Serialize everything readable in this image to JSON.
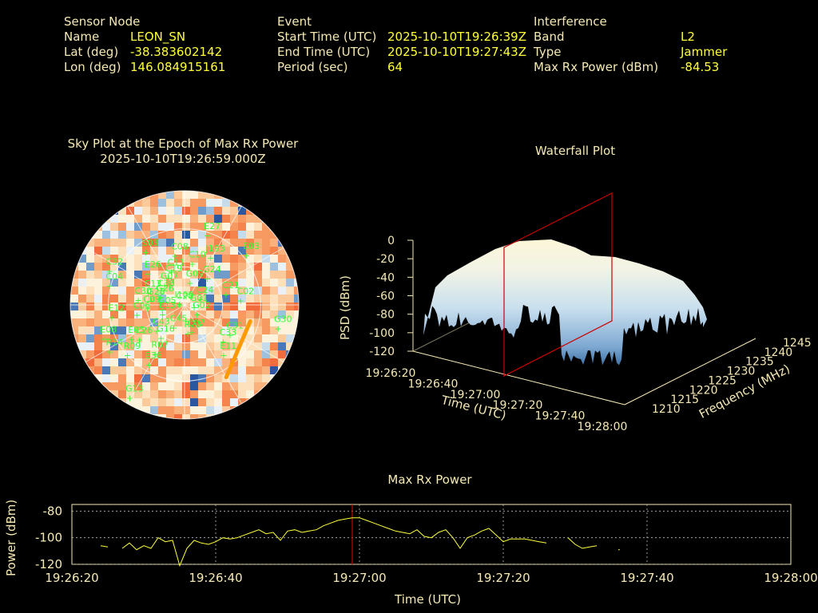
{
  "header": {
    "sensor": {
      "heading": "Sensor Node",
      "rows": [
        {
          "label": "Name",
          "value": "LEON_SN"
        },
        {
          "label": "Lat (deg)",
          "value": "-38.383602142"
        },
        {
          "label": "Lon (deg)",
          "value": "146.084915161"
        }
      ]
    },
    "event": {
      "heading": "Event",
      "rows": [
        {
          "label": "Start Time (UTC)",
          "value": "2025-10-10T19:26:39Z"
        },
        {
          "label": "End Time (UTC)",
          "value": "2025-10-10T19:27:43Z"
        },
        {
          "label": "Period (sec)",
          "value": "64"
        }
      ]
    },
    "interference": {
      "heading": "Interference",
      "rows": [
        {
          "label": "Band",
          "value": "L2"
        },
        {
          "label": "Type",
          "value": "Jammer"
        },
        {
          "label": "Max Rx Power (dBm)",
          "value": "-84.53"
        }
      ]
    }
  },
  "colors": {
    "label": "#f5e9b3",
    "value": "#ffff3a",
    "satellite_label": "#33ff33",
    "epoch_marker": "#cc0000",
    "jammer_arrow": "#ff9900"
  },
  "chart_data": [
    {
      "type": "heatmap",
      "subtype": "sky-plot",
      "title": "Sky Plot at the Epoch of Max Rx Power",
      "subtitle": "2025-10-10T19:26:59.000Z",
      "satellites": [
        {
          "id": "I105",
          "az": -3,
          "el": 88
        },
        {
          "id": "C28",
          "az": 2,
          "el": 89
        },
        {
          "id": "G09",
          "az": 20,
          "el": 70
        },
        {
          "id": "C19",
          "az": -18,
          "el": 66
        },
        {
          "id": "C11",
          "az": -12,
          "el": 62
        },
        {
          "id": "G07",
          "az": -30,
          "el": 70
        },
        {
          "id": "C38",
          "az": -45,
          "el": 73
        },
        {
          "id": "C10",
          "az": 15,
          "el": 55
        },
        {
          "id": "C08",
          "az": -5,
          "el": 50
        },
        {
          "id": "J193",
          "az": 30,
          "el": 45
        },
        {
          "id": "E26",
          "az": -40,
          "el": 55
        },
        {
          "id": "G26",
          "az": -55,
          "el": 75
        },
        {
          "id": "C13",
          "az": -60,
          "el": 65
        },
        {
          "id": "G28",
          "az": -70,
          "el": 70
        },
        {
          "id": "C30",
          "az": -75,
          "el": 60
        },
        {
          "id": "C09",
          "az": -85,
          "el": 68
        },
        {
          "id": "C06",
          "az": -95,
          "el": 60
        },
        {
          "id": "G05",
          "az": -85,
          "el": 80
        },
        {
          "id": "S03",
          "az": -30,
          "el": 40
        },
        {
          "id": "E27",
          "az": 20,
          "el": 30
        },
        {
          "id": "G24",
          "az": 40,
          "el": 60
        },
        {
          "id": "E03",
          "az": 50,
          "el": 25
        },
        {
          "id": "C04",
          "az": -70,
          "el": 35
        },
        {
          "id": "C32",
          "az": -60,
          "el": 30
        },
        {
          "id": "C21",
          "az": 70,
          "el": 55
        },
        {
          "id": "G01",
          "az": 75,
          "el": 82
        },
        {
          "id": "E13",
          "az": -100,
          "el": 80
        },
        {
          "id": "E08",
          "az": -110,
          "el": 30
        },
        {
          "id": "G13",
          "az": -150,
          "el": 15
        },
        {
          "id": "G30",
          "az": 100,
          "el": 15
        },
        {
          "id": "C02",
          "az": 80,
          "el": 45
        },
        {
          "id": "G02",
          "az": 100,
          "el": 80
        },
        {
          "id": "C31",
          "az": 115,
          "el": 50
        },
        {
          "id": "C33",
          "az": 125,
          "el": 52
        },
        {
          "id": "E11",
          "az": 135,
          "el": 45
        },
        {
          "id": "E36",
          "az": -150,
          "el": 45
        },
        {
          "id": "E05",
          "az": -120,
          "el": 50
        },
        {
          "id": "C43",
          "az": -130,
          "el": 70
        },
        {
          "id": "R07",
          "az": -150,
          "el": 55
        },
        {
          "id": "G16",
          "az": -145,
          "el": 68
        },
        {
          "id": "C45",
          "az": -160,
          "el": 80
        },
        {
          "id": "R23",
          "az": 160,
          "el": 75
        },
        {
          "id": "C07",
          "az": 150,
          "el": 75
        },
        {
          "id": "R09",
          "az": -130,
          "el": 40
        },
        {
          "id": "R14",
          "az": -120,
          "el": 30
        },
        {
          "id": "E12",
          "az": -95,
          "el": 40
        },
        {
          "id": "C26",
          "az": -125,
          "el": 55
        },
        {
          "id": "C24",
          "az": 60,
          "el": 75
        }
      ],
      "jammer_direction_az": 130
    },
    {
      "type": "area",
      "subtype": "3d-waterfall",
      "title": "Waterfall Plot",
      "xlabel": "Time (UTC)",
      "ylabel": "Frequency (MHz)",
      "zlabel": "PSD (dBm)",
      "x_ticks": [
        "19:26:20",
        "19:26:40",
        "19:27:00",
        "19:27:20",
        "19:27:40",
        "19:28:00"
      ],
      "y_ticks": [
        "1210",
        "1215",
        "1220",
        "1225",
        "1230",
        "1235",
        "1240",
        "1245"
      ],
      "z_ticks": [
        "0",
        "-20",
        "-40",
        "-60",
        "-80",
        "-100",
        "-120"
      ],
      "zlim": [
        -120,
        0
      ]
    },
    {
      "type": "line",
      "title": "Max Rx Power",
      "xlabel": "Time (UTC)",
      "ylabel": "Power (dBm)",
      "x_ticks": [
        "19:26:20",
        "19:26:40",
        "19:27:00",
        "19:27:20",
        "19:27:40",
        "19:28:00"
      ],
      "y_ticks": [
        "-80",
        "-100",
        "-120"
      ],
      "ylim": [
        -120,
        -75
      ],
      "xlim_sec": [
        0,
        100
      ],
      "epoch_marker_sec": 39,
      "series": [
        {
          "segments": [
            [
              [
                4,
                -106
              ],
              [
                5,
                -107
              ]
            ],
            [
              [
                7,
                -108
              ],
              [
                8,
                -104
              ],
              [
                9,
                -109
              ],
              [
                10,
                -106
              ],
              [
                11,
                -108
              ],
              [
                12,
                -100
              ],
              [
                13,
                -103
              ],
              [
                14,
                -102
              ],
              [
                15,
                -121
              ],
              [
                16,
                -108
              ],
              [
                17,
                -102
              ],
              [
                18,
                -104
              ],
              [
                19,
                -105
              ],
              [
                20,
                -103
              ],
              [
                21,
                -100
              ],
              [
                22,
                -101
              ],
              [
                23,
                -100
              ],
              [
                24,
                -98
              ],
              [
                25,
                -96
              ],
              [
                26,
                -94
              ],
              [
                27,
                -97
              ],
              [
                28,
                -96
              ],
              [
                29,
                -102
              ],
              [
                30,
                -95
              ],
              [
                31,
                -94
              ],
              [
                32,
                -96
              ],
              [
                33,
                -95
              ],
              [
                34,
                -94
              ],
              [
                35,
                -91
              ],
              [
                36,
                -89
              ],
              [
                37,
                -87
              ],
              [
                38,
                -86
              ],
              [
                39,
                -85
              ],
              [
                40,
                -85
              ],
              [
                41,
                -87
              ],
              [
                42,
                -89
              ],
              [
                43,
                -91
              ],
              [
                44,
                -93
              ],
              [
                45,
                -95
              ],
              [
                46,
                -96
              ],
              [
                47,
                -97
              ],
              [
                48,
                -94
              ],
              [
                49,
                -99
              ],
              [
                50,
                -100
              ],
              [
                51,
                -96
              ],
              [
                52,
                -94
              ],
              [
                53,
                -100
              ],
              [
                54,
                -108
              ],
              [
                55,
                -100
              ],
              [
                56,
                -98
              ],
              [
                57,
                -95
              ],
              [
                58,
                -93
              ],
              [
                59,
                -98
              ],
              [
                60,
                -103
              ],
              [
                61,
                -101
              ],
              [
                62,
                -101
              ],
              [
                63,
                -101
              ],
              [
                64,
                -102
              ],
              [
                65,
                -103
              ],
              [
                66,
                -104
              ]
            ],
            [
              [
                69,
                -100
              ],
              [
                70,
                -105
              ],
              [
                71,
                -108
              ],
              [
                72,
                -107
              ],
              [
                73,
                -106
              ]
            ],
            [
              [
                76,
                -109
              ],
              [
                76.2,
                -109
              ]
            ]
          ]
        }
      ]
    }
  ]
}
